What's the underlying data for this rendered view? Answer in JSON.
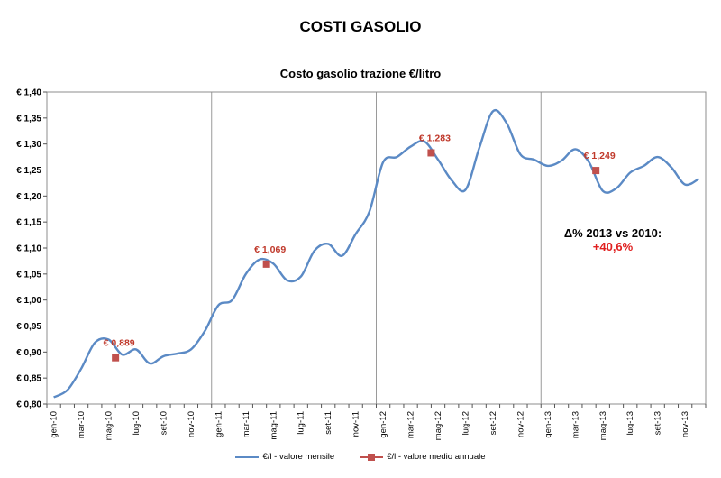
{
  "page": {
    "title": "COSTI GASOLIO"
  },
  "annotation": {
    "line1": "Δ% 2013 vs 2010:",
    "line2": "+40,6%"
  },
  "chart_data": {
    "type": "line",
    "subtitle": "Costo gasolio trazione €/litro",
    "xlabel": "",
    "ylabel": "",
    "ylim": [
      0.8,
      1.4
    ],
    "ytick_step": 0.05,
    "ytick_labels": [
      "€ 0,80",
      "€ 0,85",
      "€ 0,90",
      "€ 0,95",
      "€ 1,00",
      "€ 1,05",
      "€ 1,10",
      "€ 1,15",
      "€ 1,20",
      "€ 1,25",
      "€ 1,30",
      "€ 1,35",
      "€ 1,40"
    ],
    "x_tick_labels": [
      "gen-10",
      "mar-10",
      "mag-10",
      "lug-10",
      "set-10",
      "nov-10",
      "gen-11",
      "mar-11",
      "mag-11",
      "lug-11",
      "set-11",
      "nov-11",
      "gen-12",
      "mar-12",
      "mag-12",
      "lug-12",
      "set-12",
      "nov-12",
      "gen-13",
      "mar-13",
      "mag-13",
      "lug-13",
      "set-13",
      "nov-13"
    ],
    "grid": "vertical separators at year boundaries",
    "legend_position": "bottom",
    "series": [
      {
        "name": "€/l - valore mensile",
        "color": "#5b8ac5",
        "style": "smooth-line",
        "x": [
          0,
          1,
          2,
          3,
          4,
          5,
          6,
          7,
          8,
          9,
          10,
          11,
          12,
          13,
          14,
          15,
          16,
          17,
          18,
          19,
          20,
          21,
          22,
          23,
          24,
          25,
          26,
          27,
          28,
          29,
          30,
          31,
          32,
          33,
          34,
          35,
          36,
          37,
          38,
          39,
          40,
          41,
          42,
          43,
          44,
          45,
          46,
          47
        ],
        "values": [
          0.813,
          0.827,
          0.868,
          0.918,
          0.924,
          0.895,
          0.905,
          0.878,
          0.892,
          0.897,
          0.905,
          0.94,
          0.99,
          1.0,
          1.05,
          1.078,
          1.07,
          1.038,
          1.045,
          1.095,
          1.108,
          1.085,
          1.127,
          1.17,
          1.265,
          1.275,
          1.295,
          1.305,
          1.27,
          1.23,
          1.212,
          1.292,
          1.363,
          1.34,
          1.28,
          1.27,
          1.258,
          1.268,
          1.29,
          1.265,
          1.21,
          1.215,
          1.245,
          1.258,
          1.275,
          1.255,
          1.222,
          1.233
        ]
      },
      {
        "name": "€/l - valore medio annuale",
        "color": "#c0504d",
        "style": "marker",
        "x": [
          4.5,
          15.5,
          27.5,
          39.5
        ],
        "values": [
          0.889,
          1.069,
          1.283,
          1.249
        ],
        "labels": [
          "€ 0,889",
          "€ 1,069",
          "€ 1,283",
          "€ 1,249"
        ]
      }
    ]
  }
}
